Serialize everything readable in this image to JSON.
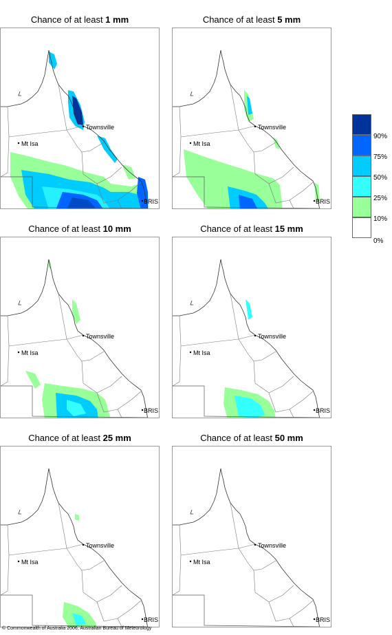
{
  "panels": [
    {
      "title_prefix": "Chance of at least ",
      "threshold": "1 mm"
    },
    {
      "title_prefix": "Chance of at least ",
      "threshold": "5 mm"
    },
    {
      "title_prefix": "Chance of at least ",
      "threshold": "10 mm"
    },
    {
      "title_prefix": "Chance of at least ",
      "threshold": "15 mm"
    },
    {
      "title_prefix": "Chance of at least ",
      "threshold": "25 mm"
    },
    {
      "title_prefix": "Chance of at least ",
      "threshold": "50 mm"
    }
  ],
  "places": {
    "townsville": "Townsville",
    "mt_isa": "Mt Isa",
    "brisbane": "BRIS"
  },
  "legend": {
    "labels": [
      "90%",
      "75%",
      "50%",
      "25%",
      "10%",
      "0%"
    ],
    "colors": [
      "#003399",
      "#0066ff",
      "#00ccff",
      "#33ffff",
      "#99ff99",
      "#ffffff"
    ]
  },
  "credit": "© Commonwealth of Australia 2006, Australian Bureau of Meteorology"
}
